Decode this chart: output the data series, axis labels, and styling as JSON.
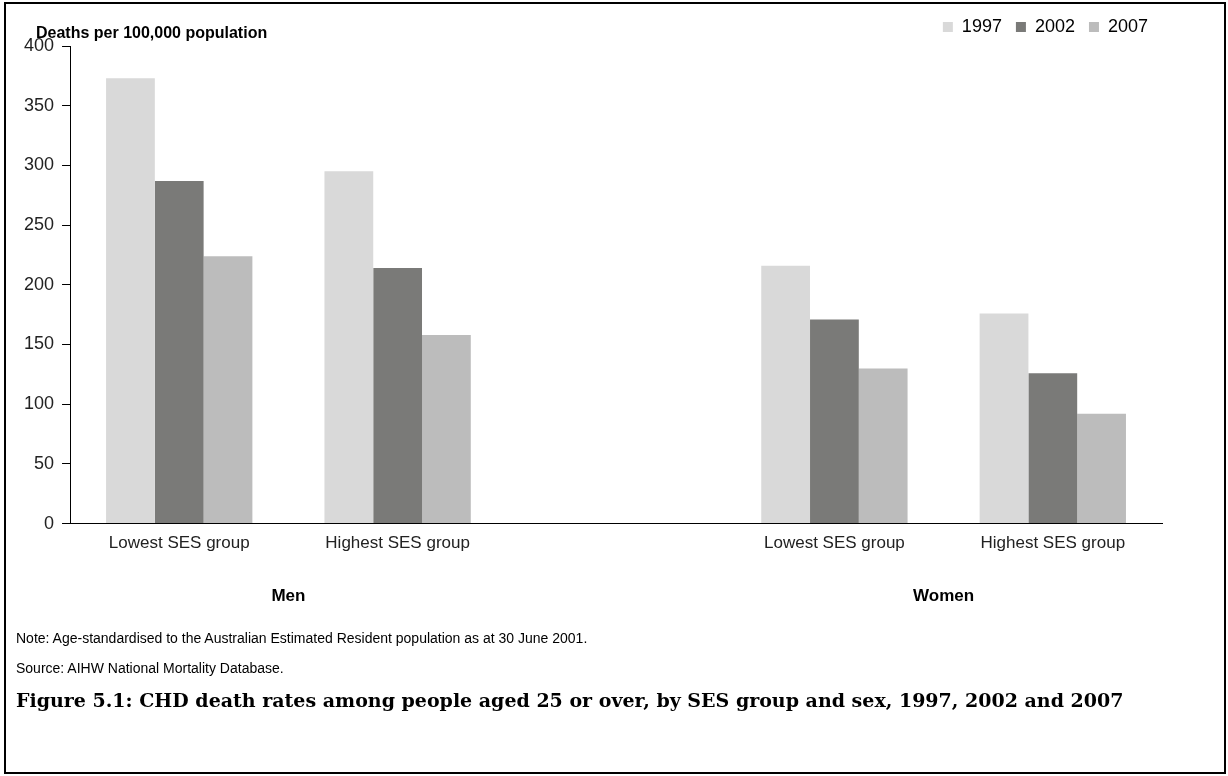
{
  "chart_data": {
    "type": "bar",
    "title": "Figure 5.1: CHD death rates among people aged 25 or over, by SES group and sex, 1997, 2002 and 2007",
    "ylabel": "Deaths per 100,000 population",
    "categories": [
      "Lowest SES group",
      "Highest SES group",
      null,
      "Lowest SES group",
      "Highest SES group"
    ],
    "series": [
      {
        "name": "1997",
        "color": "#d9d9d9",
        "values": [
          373,
          295,
          null,
          216,
          176
        ]
      },
      {
        "name": "2002",
        "color": "#7a7a78",
        "values": [
          287,
          214,
          null,
          171,
          126
        ]
      },
      {
        "name": "2007",
        "color": "#bcbcbc",
        "values": [
          224,
          158,
          null,
          130,
          92
        ]
      }
    ],
    "ylim": [
      0,
      400
    ],
    "yticks": [
      0,
      50,
      100,
      150,
      200,
      250,
      300,
      350,
      400
    ],
    "grid": false,
    "legend": "top right",
    "annotations": [
      "Men",
      "Women",
      "Note: Age-standardised to the Australian Estimated Resident population as at 30 June 2001.",
      "Source: AIHW National Mortality Database."
    ]
  }
}
